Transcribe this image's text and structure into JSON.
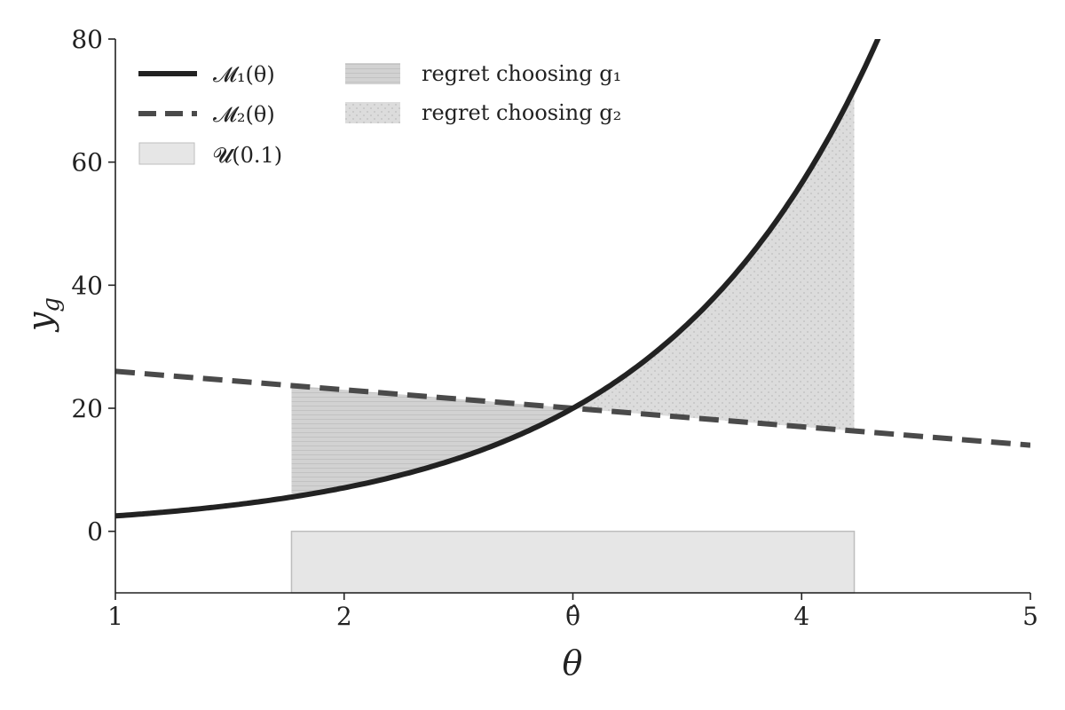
{
  "chart_data": {
    "type": "line",
    "xlabel": "θ",
    "ylabel": "y",
    "ylabel_sub": "g",
    "xlim": [
      1,
      5
    ],
    "ylim": [
      -10,
      80
    ],
    "x_ticks": [
      {
        "value": 1,
        "label": "1"
      },
      {
        "value": 2,
        "label": "2"
      },
      {
        "value": 3,
        "label": "θ̂"
      },
      {
        "value": 4,
        "label": "4"
      },
      {
        "value": 5,
        "label": "5"
      }
    ],
    "y_ticks": [
      {
        "value": 0,
        "label": "0"
      },
      {
        "value": 20,
        "label": "20"
      },
      {
        "value": 40,
        "label": "40"
      },
      {
        "value": 60,
        "label": "60"
      },
      {
        "value": 80,
        "label": "80"
      }
    ],
    "grid": false,
    "legend_position": "top-left",
    "series": [
      {
        "name": "𝓜₁(θ)",
        "style": "solid",
        "color": "#222222",
        "x": [
          1.0,
          1.25,
          1.5,
          1.75,
          2.0,
          2.25,
          2.5,
          2.75,
          3.0,
          3.25,
          3.5,
          3.75,
          4.0,
          4.25,
          4.38
        ],
        "y": [
          2.5,
          3.4,
          4.5,
          5.9,
          7.4,
          9.6,
          12.3,
          15.6,
          20.0,
          25.6,
          32.8,
          42.5,
          55.0,
          69.0,
          80.0
        ]
      },
      {
        "name": "𝓜₂(θ)",
        "style": "dashed",
        "color": "#4a4a4a",
        "x": [
          1.0,
          5.0
        ],
        "y": [
          26.0,
          14.0
        ]
      }
    ],
    "shaded_regions": [
      {
        "name": "regret choosing g₁",
        "pattern": "horizontal-lines",
        "color": "#cfcfcf",
        "x_from": 1.77,
        "x_to": 3.0
      },
      {
        "name": "regret choosing g₂",
        "pattern": "dots",
        "color": "#d8d8d8",
        "x_from": 3.0,
        "x_to": 4.23
      }
    ],
    "uniform_box": {
      "name": "𝓤(0.1)",
      "x_from": 1.77,
      "x_to": 4.23,
      "y_from": -10,
      "y_to": 0,
      "color": "#e6e6e6"
    }
  }
}
